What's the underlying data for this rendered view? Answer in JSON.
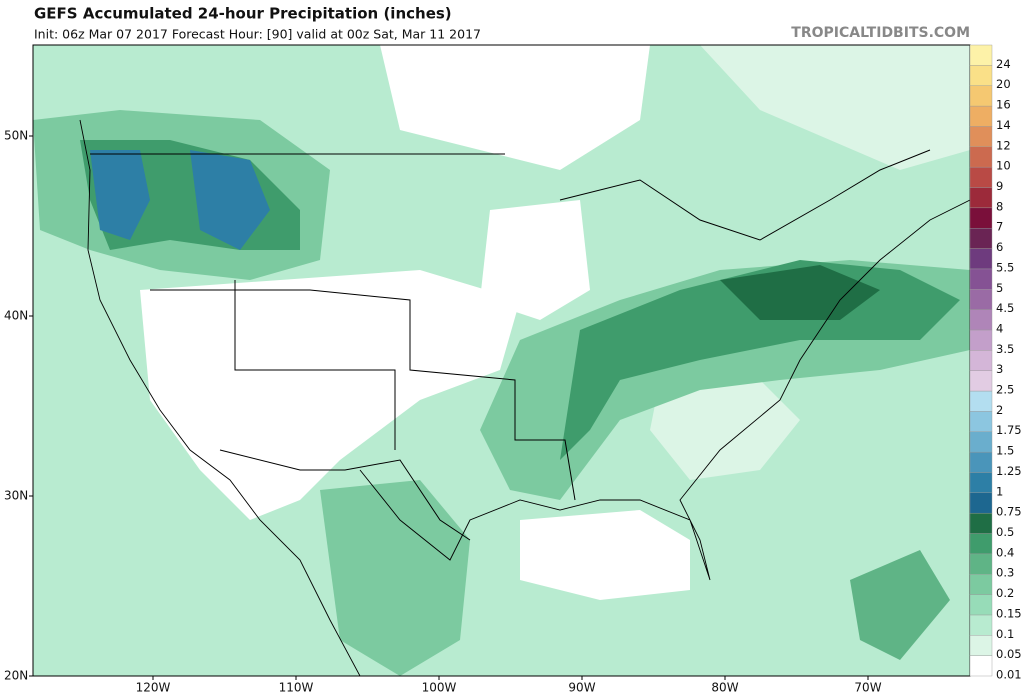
{
  "header": {
    "title": "GEFS Accumulated 24-hour Precipitation (inches)",
    "subtitle": "Init: 06z Mar 07 2017   Forecast Hour: [90]   valid at 00z Sat, Mar 11 2017",
    "watermark": "TROPICALTIDBITS.COM"
  },
  "map": {
    "lat_labels": [
      "50N",
      "40N",
      "30N",
      "20N"
    ],
    "lon_labels": [
      "120W",
      "110W",
      "100W",
      "90W",
      "80W",
      "70W"
    ]
  },
  "colorbar": [
    {
      "label": "0.01",
      "color": "#ffffff"
    },
    {
      "label": "0.05",
      "color": "#dcf5e6"
    },
    {
      "label": "0.1",
      "color": "#b8ebd0"
    },
    {
      "label": "0.15",
      "color": "#97dcb8"
    },
    {
      "label": "0.2",
      "color": "#7ccaa0"
    },
    {
      "label": "0.3",
      "color": "#5fb486"
    },
    {
      "label": "0.4",
      "color": "#3f9c6c"
    },
    {
      "label": "0.5",
      "color": "#1f6e45"
    },
    {
      "label": "0.75",
      "color": "#1d6790"
    },
    {
      "label": "1",
      "color": "#2d7fa6"
    },
    {
      "label": "1.25",
      "color": "#4a95ba"
    },
    {
      "label": "1.5",
      "color": "#6aaecd"
    },
    {
      "label": "1.75",
      "color": "#8cc6e0"
    },
    {
      "label": "2",
      "color": "#b3def0"
    },
    {
      "label": "2.5",
      "color": "#e2cce3"
    },
    {
      "label": "3",
      "color": "#d4b6d8"
    },
    {
      "label": "3.5",
      "color": "#c39fca"
    },
    {
      "label": "4",
      "color": "#af85b8"
    },
    {
      "label": "4.5",
      "color": "#9a6ba5"
    },
    {
      "label": "5",
      "color": "#855294"
    },
    {
      "label": "5.5",
      "color": "#6e3b7e"
    },
    {
      "label": "6",
      "color": "#6a2454"
    },
    {
      "label": "7",
      "color": "#7a0f3a"
    },
    {
      "label": "8",
      "color": "#9c2a3a"
    },
    {
      "label": "9",
      "color": "#b94a45"
    },
    {
      "label": "10",
      "color": "#cc6a4f"
    },
    {
      "label": "12",
      "color": "#e08f5a"
    },
    {
      "label": "14",
      "color": "#eeae63"
    },
    {
      "label": "16",
      "color": "#f5c871"
    },
    {
      "label": "20",
      "color": "#fae088"
    },
    {
      "label": "24",
      "color": "#fdf2a8"
    }
  ]
}
